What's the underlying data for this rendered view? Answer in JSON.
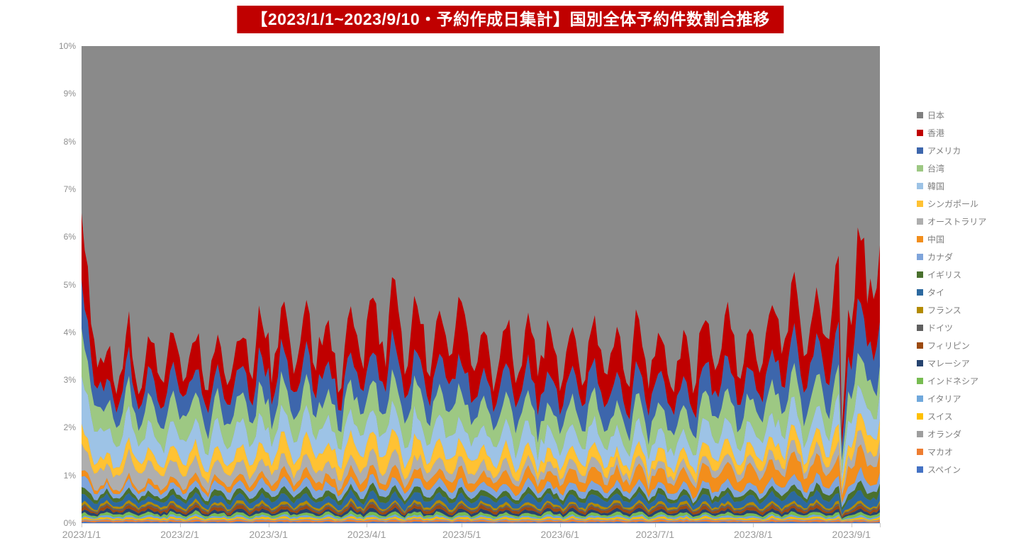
{
  "title": {
    "text": "【2023/1/1~2023/9/10・予約作成日集計】国別全体予約件数割合推移",
    "bg_color": "#C00000",
    "text_color": "#FFFFFF"
  },
  "chart_data": {
    "type": "area",
    "stacked": true,
    "unit": "percent_share",
    "date_range": {
      "start": "2023/1/1",
      "end": "2023/9/10",
      "days": 253
    },
    "ylim": [
      0,
      10
    ],
    "y_tick_labels": [
      "0%",
      "1%",
      "2%",
      "3%",
      "4%",
      "5%",
      "6%",
      "7%",
      "8%",
      "9%",
      "10%"
    ],
    "x_ticks": {
      "labels": [
        "2023/1/1",
        "2023/2/1",
        "2023/3/1",
        "2023/4/1",
        "2023/5/1",
        "2023/6/1",
        "2023/7/1",
        "2023/8/1",
        "2023/9/1"
      ],
      "days": [
        0,
        31,
        59,
        90,
        120,
        151,
        181,
        212,
        243
      ]
    },
    "legend_position": "right",
    "grid": false,
    "stack_order": "top-to-bottom",
    "sampling_note": "Band thickness (% of all reservations) sampled weekly from the daily chart; values between samples interpolated. 日本 (Japan) occupies everything above the coloured stack and is clipped by the 10% axis maximum.",
    "control_interval_days": 7,
    "anomalies": {
      "240": 0.4,
      "241": 0.7
    },
    "series": [
      {
        "key": "japan",
        "name": "日本",
        "color": "#8A8A8A",
        "swatch": "#7F7F7F",
        "role": "remainder_above_stack"
      },
      {
        "key": "hongkong",
        "name": "香港",
        "color": "#C00000",
        "jitter": 0.34,
        "controls": [
          1.45,
          0.55,
          0.58,
          0.55,
          0.6,
          0.62,
          0.58,
          0.63,
          0.68,
          0.72,
          0.75,
          0.7,
          0.74,
          0.82,
          0.95,
          1.0,
          0.85,
          1.02,
          0.68,
          0.75,
          0.8,
          0.78,
          0.74,
          0.8,
          0.7,
          0.76,
          0.73,
          0.7,
          0.76,
          0.8,
          0.75,
          0.85,
          0.92,
          0.85,
          1.0,
          1.25,
          1.15
        ]
      },
      {
        "key": "usa",
        "name": "アメリカ",
        "color": "#3D66AC",
        "jitter": 0.24,
        "controls": [
          0.8,
          0.42,
          0.46,
          0.43,
          0.48,
          0.5,
          0.5,
          0.52,
          0.55,
          0.56,
          0.58,
          0.55,
          0.56,
          0.6,
          0.64,
          0.62,
          0.58,
          0.63,
          0.52,
          0.55,
          0.58,
          0.56,
          0.55,
          0.58,
          0.53,
          0.55,
          0.56,
          0.53,
          0.56,
          0.6,
          0.58,
          0.63,
          0.68,
          0.64,
          0.75,
          0.95,
          0.9
        ]
      },
      {
        "key": "taiwan",
        "name": "台湾",
        "color": "#9DC883",
        "jitter": 0.24,
        "controls": [
          0.82,
          0.46,
          0.5,
          0.47,
          0.49,
          0.5,
          0.48,
          0.51,
          0.53,
          0.54,
          0.55,
          0.52,
          0.53,
          0.56,
          0.58,
          0.55,
          0.52,
          0.56,
          0.47,
          0.5,
          0.51,
          0.5,
          0.48,
          0.51,
          0.46,
          0.49,
          0.48,
          0.46,
          0.49,
          0.52,
          0.5,
          0.54,
          0.57,
          0.54,
          0.58,
          0.64,
          0.6
        ]
      },
      {
        "key": "korea",
        "name": "韓国",
        "color": "#9DC3E6",
        "jitter": 0.24,
        "controls": [
          0.85,
          0.48,
          0.5,
          0.46,
          0.47,
          0.48,
          0.46,
          0.47,
          0.48,
          0.47,
          0.48,
          0.45,
          0.46,
          0.48,
          0.49,
          0.46,
          0.44,
          0.47,
          0.4,
          0.42,
          0.43,
          0.41,
          0.4,
          0.42,
          0.38,
          0.4,
          0.39,
          0.38,
          0.4,
          0.42,
          0.4,
          0.43,
          0.46,
          0.43,
          0.47,
          0.52,
          0.49
        ]
      },
      {
        "key": "singapore",
        "name": "シンガポール",
        "color": "#FFC233",
        "jitter": 0.3,
        "controls": [
          0.3,
          0.21,
          0.24,
          0.22,
          0.25,
          0.27,
          0.25,
          0.28,
          0.32,
          0.34,
          0.36,
          0.33,
          0.36,
          0.39,
          0.38,
          0.34,
          0.31,
          0.33,
          0.26,
          0.28,
          0.27,
          0.25,
          0.24,
          0.26,
          0.22,
          0.24,
          0.22,
          0.21,
          0.24,
          0.26,
          0.25,
          0.28,
          0.31,
          0.28,
          0.33,
          0.38,
          0.35
        ]
      },
      {
        "key": "australia",
        "name": "オーストラリア",
        "color": "#AEAEAE",
        "jitter": 0.3,
        "controls": [
          0.48,
          0.34,
          0.36,
          0.32,
          0.3,
          0.28,
          0.26,
          0.26,
          0.27,
          0.25,
          0.24,
          0.22,
          0.23,
          0.25,
          0.23,
          0.21,
          0.2,
          0.21,
          0.17,
          0.18,
          0.17,
          0.16,
          0.15,
          0.17,
          0.14,
          0.15,
          0.14,
          0.14,
          0.15,
          0.17,
          0.16,
          0.19,
          0.21,
          0.19,
          0.23,
          0.27,
          0.25
        ]
      },
      {
        "key": "china",
        "name": "中国",
        "color": "#F28E1C",
        "jitter": 0.3,
        "controls": [
          0.11,
          0.07,
          0.09,
          0.09,
          0.11,
          0.12,
          0.11,
          0.13,
          0.15,
          0.16,
          0.17,
          0.16,
          0.17,
          0.19,
          0.21,
          0.19,
          0.19,
          0.21,
          0.19,
          0.21,
          0.23,
          0.23,
          0.22,
          0.25,
          0.23,
          0.25,
          0.27,
          0.25,
          0.29,
          0.31,
          0.29,
          0.33,
          0.36,
          0.34,
          0.38,
          0.42,
          0.4
        ]
      },
      {
        "key": "canada",
        "name": "カナダ",
        "color": "#7FA5DB",
        "jitter": 0.28,
        "controls": [
          0.22,
          0.12,
          0.14,
          0.13,
          0.14,
          0.15,
          0.14,
          0.15,
          0.16,
          0.16,
          0.17,
          0.15,
          0.16,
          0.17,
          0.17,
          0.15,
          0.15,
          0.16,
          0.13,
          0.14,
          0.14,
          0.13,
          0.13,
          0.14,
          0.12,
          0.13,
          0.13,
          0.12,
          0.13,
          0.14,
          0.13,
          0.15,
          0.17,
          0.15,
          0.18,
          0.21,
          0.19
        ]
      },
      {
        "key": "uk",
        "name": "イギリス",
        "color": "#49702D",
        "jitter": 0.28,
        "controls": [
          0.13,
          0.09,
          0.1,
          0.09,
          0.1,
          0.1,
          0.1,
          0.1,
          0.11,
          0.11,
          0.12,
          0.1,
          0.11,
          0.12,
          0.12,
          0.11,
          0.1,
          0.11,
          0.1,
          0.1,
          0.1,
          0.1,
          0.1,
          0.1,
          0.09,
          0.1,
          0.1,
          0.09,
          0.1,
          0.11,
          0.1,
          0.11,
          0.12,
          0.11,
          0.13,
          0.15,
          0.14
        ]
      },
      {
        "key": "thailand",
        "name": "タイ",
        "color": "#2C699F",
        "jitter": 0.28,
        "controls": [
          0.16,
          0.1,
          0.11,
          0.1,
          0.11,
          0.12,
          0.11,
          0.12,
          0.13,
          0.13,
          0.14,
          0.13,
          0.13,
          0.14,
          0.15,
          0.14,
          0.13,
          0.14,
          0.12,
          0.13,
          0.14,
          0.13,
          0.12,
          0.14,
          0.12,
          0.13,
          0.13,
          0.12,
          0.13,
          0.14,
          0.13,
          0.15,
          0.16,
          0.15,
          0.17,
          0.19,
          0.18
        ]
      },
      {
        "key": "france",
        "name": "フランス",
        "color": "#B38B00",
        "jitter": 0.38,
        "controls": 0.045
      },
      {
        "key": "germany",
        "name": "ドイツ",
        "color": "#606060",
        "jitter": 0.38,
        "controls": 0.035
      },
      {
        "key": "philippines",
        "name": "フィリピン",
        "color": "#9C4A10",
        "jitter": 0.38,
        "controls": 0.055
      },
      {
        "key": "malaysia",
        "name": "マレーシア",
        "color": "#26436F",
        "jitter": 0.38,
        "controls": 0.055
      },
      {
        "key": "indonesia",
        "name": "インドネシア",
        "color": "#77BC51",
        "jitter": 0.38,
        "controls": 0.05
      },
      {
        "key": "italy",
        "name": "イタリア",
        "color": "#70A8DC",
        "jitter": 0.4,
        "controls": 0.032
      },
      {
        "key": "switzerland",
        "name": "スイス",
        "color": "#FFC000",
        "jitter": 0.4,
        "controls": 0.032
      },
      {
        "key": "netherlands",
        "name": "オランダ",
        "color": "#9E9E9E",
        "jitter": 0.4,
        "controls": 0.022
      },
      {
        "key": "macau",
        "name": "マカオ",
        "color": "#EE7D31",
        "jitter": 0.4,
        "controls": 0.03
      },
      {
        "key": "spain",
        "name": "スペイン",
        "color": "#4472C4",
        "jitter": 0.4,
        "controls": 0.022
      }
    ]
  }
}
